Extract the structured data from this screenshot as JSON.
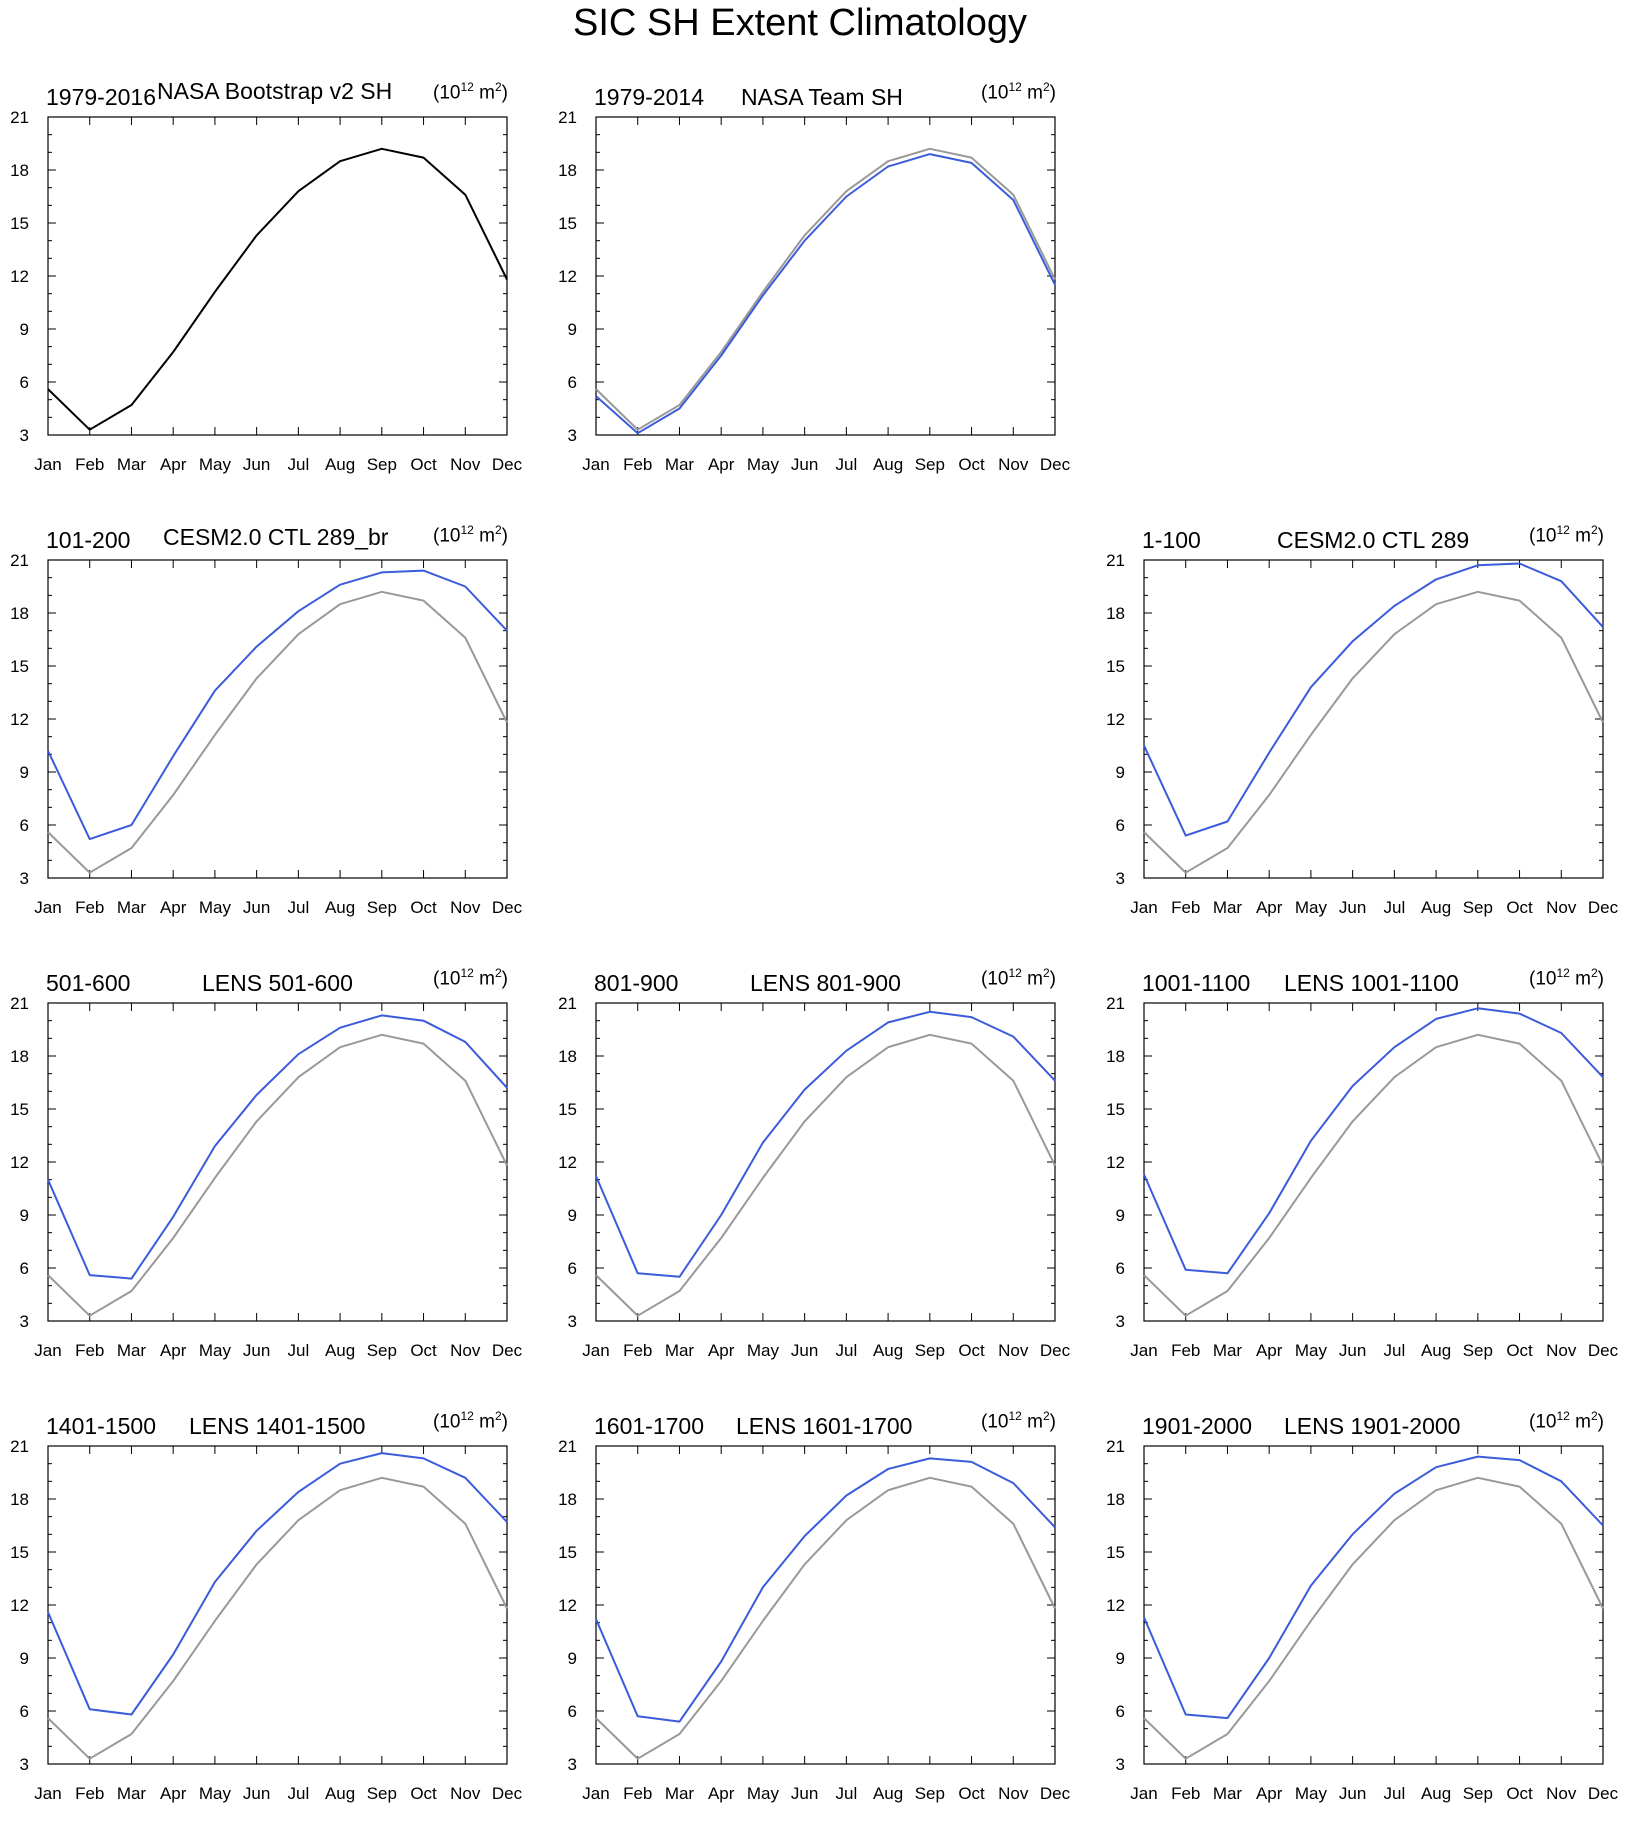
{
  "title": "SIC SH Extent Climatology",
  "units": {
    "prefix": "(10",
    "exp": "12",
    "mid": " m",
    "sq": "2",
    "suffix": ")"
  },
  "colors": {
    "reference": "#999999",
    "model": "#3b5bdb",
    "black": "#000000"
  },
  "chart_data": {
    "type": "line",
    "x": [
      "Jan",
      "Feb",
      "Mar",
      "Apr",
      "May",
      "Jun",
      "Jul",
      "Aug",
      "Sep",
      "Oct",
      "Nov",
      "Dec"
    ],
    "yticks": [
      3,
      6,
      9,
      12,
      15,
      18,
      21
    ],
    "ylim": [
      3,
      21
    ],
    "reference_series": {
      "name": "NASA Bootstrap v2 SH 1979-2016",
      "values": [
        5.6,
        3.3,
        4.7,
        7.7,
        11.1,
        14.3,
        16.8,
        18.5,
        19.2,
        18.7,
        16.6,
        11.8
      ]
    },
    "panels": [
      {
        "left_label": "1979-2016",
        "center_label": "NASA Bootstrap v2 SH",
        "series": [
          {
            "name": "NASA Bootstrap v2 SH",
            "color": "#000000",
            "values": [
              5.6,
              3.3,
              4.7,
              7.7,
              11.1,
              14.3,
              16.8,
              18.5,
              19.2,
              18.7,
              16.6,
              11.8
            ]
          }
        ]
      },
      {
        "left_label": "1979-2014",
        "center_label": "NASA Team SH",
        "series": [
          {
            "name": "reference",
            "color": "#999999",
            "values": [
              5.6,
              3.3,
              4.7,
              7.7,
              11.1,
              14.3,
              16.8,
              18.5,
              19.2,
              18.7,
              16.6,
              11.8
            ]
          },
          {
            "name": "NASA Team SH",
            "color": "#3b5bdb",
            "values": [
              5.2,
              3.1,
              4.5,
              7.5,
              10.9,
              14.0,
              16.5,
              18.2,
              18.9,
              18.4,
              16.3,
              11.5
            ]
          }
        ]
      },
      {
        "left_label": "101-200",
        "center_label": "CESM2.0 CTL 289_br",
        "series": [
          {
            "name": "reference",
            "color": "#999999",
            "values": [
              5.6,
              3.3,
              4.7,
              7.7,
              11.1,
              14.3,
              16.8,
              18.5,
              19.2,
              18.7,
              16.6,
              11.8
            ]
          },
          {
            "name": "CESM2.0 CTL 289_br",
            "color": "#3b5bdb",
            "values": [
              10.2,
              5.2,
              6.0,
              9.9,
              13.6,
              16.1,
              18.1,
              19.6,
              20.3,
              20.4,
              19.5,
              17.0
            ]
          }
        ]
      },
      {
        "left_label": "1-100",
        "center_label": "CESM2.0 CTL 289",
        "series": [
          {
            "name": "reference",
            "color": "#999999",
            "values": [
              5.6,
              3.3,
              4.7,
              7.7,
              11.1,
              14.3,
              16.8,
              18.5,
              19.2,
              18.7,
              16.6,
              11.8
            ]
          },
          {
            "name": "CESM2.0 CTL 289",
            "color": "#3b5bdb",
            "values": [
              10.5,
              5.4,
              6.2,
              10.1,
              13.8,
              16.4,
              18.4,
              19.9,
              20.7,
              20.8,
              19.8,
              17.2
            ]
          }
        ]
      },
      {
        "left_label": "501-600",
        "center_label": "LENS 501-600",
        "series": [
          {
            "name": "reference",
            "color": "#999999",
            "values": [
              5.6,
              3.3,
              4.7,
              7.7,
              11.1,
              14.3,
              16.8,
              18.5,
              19.2,
              18.7,
              16.6,
              11.8
            ]
          },
          {
            "name": "LENS 501-600",
            "color": "#3b5bdb",
            "values": [
              11.0,
              5.6,
              5.4,
              8.9,
              12.9,
              15.8,
              18.1,
              19.6,
              20.3,
              20.0,
              18.8,
              16.2
            ]
          }
        ]
      },
      {
        "left_label": "801-900",
        "center_label": "LENS 801-900",
        "series": [
          {
            "name": "reference",
            "color": "#999999",
            "values": [
              5.6,
              3.3,
              4.7,
              7.7,
              11.1,
              14.3,
              16.8,
              18.5,
              19.2,
              18.7,
              16.6,
              11.8
            ]
          },
          {
            "name": "LENS 801-900",
            "color": "#3b5bdb",
            "values": [
              11.2,
              5.7,
              5.5,
              9.0,
              13.1,
              16.1,
              18.3,
              19.9,
              20.5,
              20.2,
              19.1,
              16.6
            ]
          }
        ]
      },
      {
        "left_label": "1001-1100",
        "center_label": "LENS 1001-1100",
        "series": [
          {
            "name": "reference",
            "color": "#999999",
            "values": [
              5.6,
              3.3,
              4.7,
              7.7,
              11.1,
              14.3,
              16.8,
              18.5,
              19.2,
              18.7,
              16.6,
              11.8
            ]
          },
          {
            "name": "LENS 1001-1100",
            "color": "#3b5bdb",
            "values": [
              11.3,
              5.9,
              5.7,
              9.1,
              13.2,
              16.3,
              18.5,
              20.1,
              20.7,
              20.4,
              19.3,
              16.8
            ]
          }
        ]
      },
      {
        "left_label": "1401-1500",
        "center_label": "LENS 1401-1500",
        "series": [
          {
            "name": "reference",
            "color": "#999999",
            "values": [
              5.6,
              3.3,
              4.7,
              7.7,
              11.1,
              14.3,
              16.8,
              18.5,
              19.2,
              18.7,
              16.6,
              11.8
            ]
          },
          {
            "name": "LENS 1401-1500",
            "color": "#3b5bdb",
            "values": [
              11.6,
              6.1,
              5.8,
              9.2,
              13.3,
              16.2,
              18.4,
              20.0,
              20.6,
              20.3,
              19.2,
              16.7
            ]
          }
        ]
      },
      {
        "left_label": "1601-1700",
        "center_label": "LENS 1601-1700",
        "series": [
          {
            "name": "reference",
            "color": "#999999",
            "values": [
              5.6,
              3.3,
              4.7,
              7.7,
              11.1,
              14.3,
              16.8,
              18.5,
              19.2,
              18.7,
              16.6,
              11.8
            ]
          },
          {
            "name": "LENS 1601-1700",
            "color": "#3b5bdb",
            "values": [
              11.2,
              5.7,
              5.4,
              8.8,
              13.0,
              15.9,
              18.2,
              19.7,
              20.3,
              20.1,
              18.9,
              16.4
            ]
          }
        ]
      },
      {
        "left_label": "1901-2000",
        "center_label": "LENS 1901-2000",
        "series": [
          {
            "name": "reference",
            "color": "#999999",
            "values": [
              5.6,
              3.3,
              4.7,
              7.7,
              11.1,
              14.3,
              16.8,
              18.5,
              19.2,
              18.7,
              16.6,
              11.8
            ]
          },
          {
            "name": "LENS 1901-2000",
            "color": "#3b5bdb",
            "values": [
              11.3,
              5.8,
              5.6,
              9.0,
              13.1,
              16.0,
              18.3,
              19.8,
              20.4,
              20.2,
              19.0,
              16.5
            ]
          }
        ]
      }
    ]
  }
}
